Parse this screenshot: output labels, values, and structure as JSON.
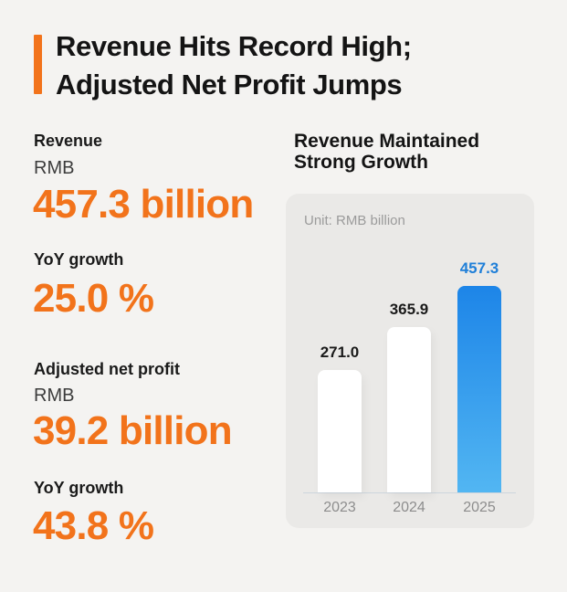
{
  "colors": {
    "accent_orange": "#f2731b",
    "title_text": "#141414",
    "muted_gray": "#8d8d8d",
    "bar_default": "#ffffff",
    "bar_highlight_top": "#1d85e8",
    "bar_highlight_bottom": "#52b6f2",
    "highlight_label_blue": "#1f7fd8",
    "panel_bg": "#eae9e7",
    "page_bg": "#f4f3f1"
  },
  "header": {
    "title_line1": "Revenue Hits Record High;",
    "title_line2": "Adjusted Net Profit Jumps"
  },
  "stats": {
    "revenue": {
      "label": "Revenue",
      "currency": "RMB",
      "value": "457.3 billion",
      "growth_label": "YoY growth",
      "growth_value": "25.0 %"
    },
    "profit": {
      "label": "Adjusted net profit",
      "currency": "RMB",
      "value": "39.2 billion",
      "growth_label": "YoY growth",
      "growth_value": "43.8 %"
    }
  },
  "chart_panel": {
    "title_line1": "Revenue Maintained",
    "title_line2": "Strong Growth"
  },
  "chart_data": {
    "type": "bar",
    "title": "Revenue Maintained Strong Growth",
    "unit": "Unit: RMB billion",
    "categories": [
      "2023",
      "2024",
      "2025"
    ],
    "values": [
      271.0,
      365.9,
      457.3
    ],
    "labels": [
      "271.0",
      "365.9",
      "457.3"
    ],
    "ylim": [
      0,
      500
    ],
    "grid": false,
    "legend": false,
    "highlight_index": 2,
    "highlight_note": "2025 bar drawn in blue gradient with blue value label; other bars white with black labels"
  }
}
